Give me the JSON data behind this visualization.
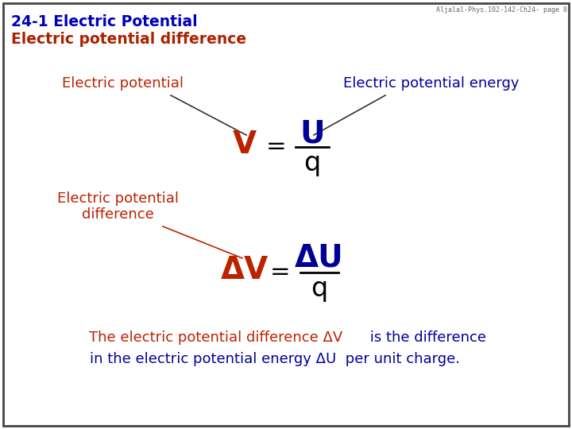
{
  "title_line1": "24-1 Electric Potential",
  "title_line2": "Electric potential difference",
  "title_color": "#0000BB",
  "title_line2_color": "#AA2200",
  "watermark": "Aljalal-Phys.102-142-Ch24- page 8",
  "watermark_color": "#666666",
  "background_color": "#FFFFFF",
  "border_color": "#444444",
  "label_electric_potential": "Electric potential",
  "label_electric_potential_energy": "Electric potential energy",
  "label_electric_potential_difference_1": "Electric potential",
  "label_electric_potential_difference_2": "difference",
  "label_color_red": "#BB2200",
  "label_color_blue": "#000099",
  "label_color_dark": "#333333",
  "formula1_V": "V",
  "formula1_U": "U",
  "formula1_q": "q",
  "formula2_DV": "ΔV",
  "formula2_DU": "ΔU",
  "formula2_q": "q",
  "bottom_text1_red": "The electric potential difference ΔV",
  "bottom_text1_blue": " is the difference",
  "bottom_text2_blue": "in the electric potential energy ΔU  per unit charge.",
  "figsize": [
    7.2,
    5.4
  ],
  "dpi": 100
}
